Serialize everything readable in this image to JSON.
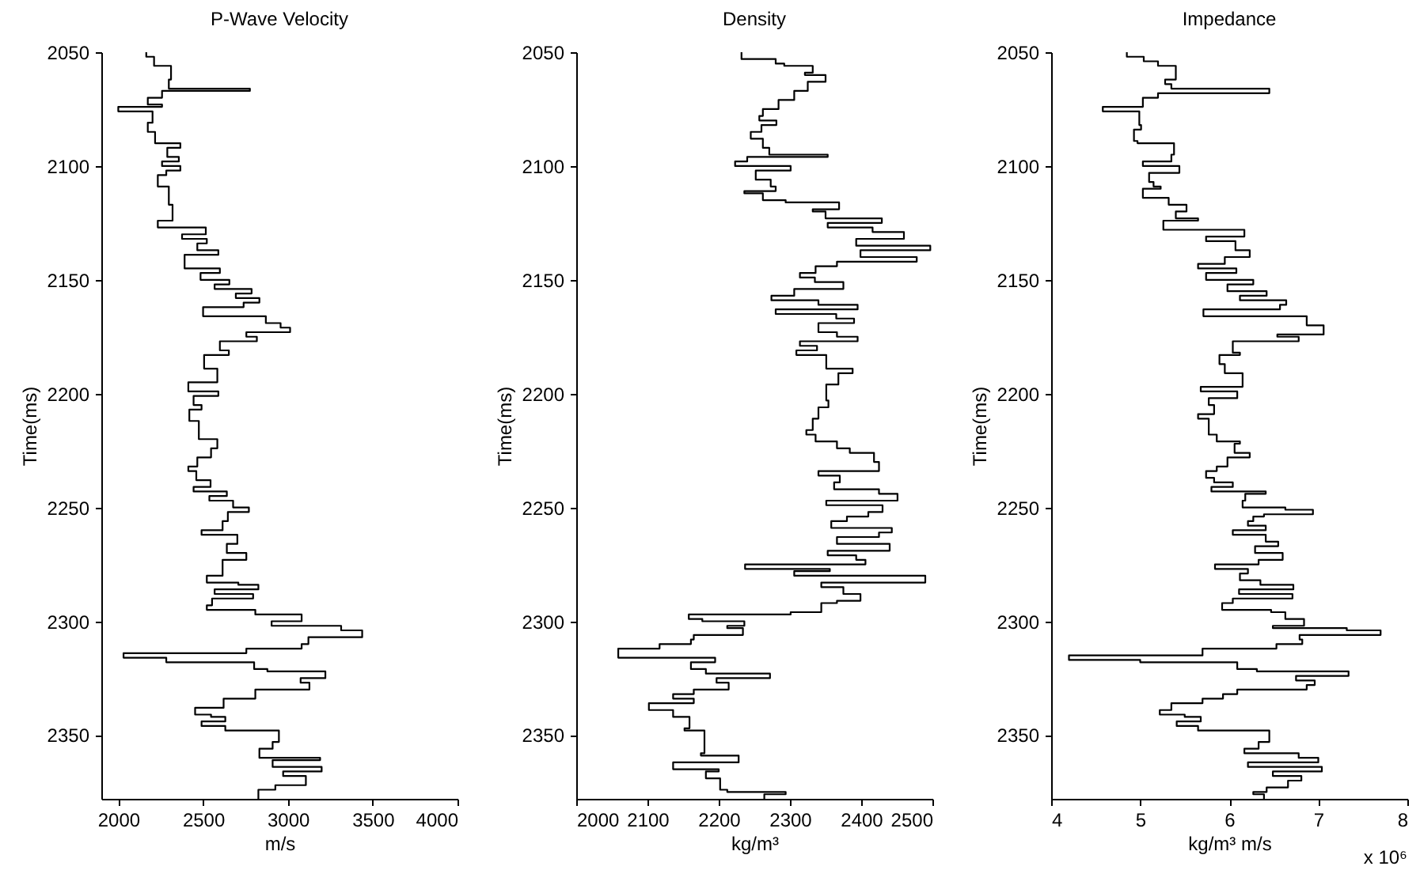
{
  "chart_data": [
    {
      "type": "step",
      "title": "P-Wave Velocity",
      "xlabel": "m/s",
      "ylabel": "Time(ms)",
      "color": "#000000",
      "grid": false,
      "xlim": [
        1900,
        4000
      ],
      "xticks": [
        2000,
        2500,
        3000,
        3500,
        4000
      ],
      "ylim": [
        2378,
        2050
      ],
      "yticks": [
        2050,
        2100,
        2150,
        2200,
        2250,
        2300,
        2350
      ],
      "x": [
        2165,
        2211,
        2311,
        2298,
        2776,
        2258,
        2174,
        2258,
        2000,
        2202,
        2174,
        2217,
        2366,
        2289,
        2357,
        2258,
        2366,
        2283,
        2233,
        2298,
        2320,
        2233,
        2516,
        2376,
        2522,
        2466,
        2590,
        2391,
        2599,
        2485,
        2655,
        2568,
        2786,
        2693,
        2832,
        2739,
        2500,
        2870,
        2957,
        3013,
        2755,
        2817,
        2599,
        2652,
        2506,
        2584,
        2413,
        2590,
        2444,
        2491,
        2419,
        2475,
        2584,
        2547,
        2466,
        2413,
        2460,
        2544,
        2444,
        2640,
        2537,
        2677,
        2770,
        2646,
        2615,
        2491,
        2702,
        2640,
        2755,
        2615,
        2522,
        2708,
        2826,
        2568,
        2795,
        2553,
        2522,
        2808,
        3081,
        2904,
        3314,
        3438,
        3121,
        3081,
        2755,
        2031,
        2283,
        2801,
        2879,
        3221,
        3075,
        3127,
        2808,
        2621,
        2453,
        2547,
        2631,
        2491,
        2631,
        2947,
        2910,
        2832,
        3190,
        2910,
        3199,
        2972,
        3106,
        2926,
        2826,
        2826
      ],
      "values": [
        2050,
        2052,
        2056,
        2062,
        2066,
        2067,
        2070,
        2073,
        2074,
        2076,
        2081,
        2085,
        2090,
        2092,
        2096,
        2098,
        2100,
        2102,
        2104,
        2109,
        2117,
        2124,
        2127,
        2130,
        2132,
        2134,
        2137,
        2139,
        2145,
        2147,
        2150,
        2152,
        2154,
        2156,
        2158,
        2160,
        2162,
        2166,
        2169,
        2171,
        2173,
        2175,
        2177,
        2181,
        2183,
        2189,
        2195,
        2199,
        2201,
        2205,
        2207,
        2212,
        2220,
        2224,
        2228,
        2232,
        2234,
        2238,
        2241,
        2243,
        2245,
        2247,
        2250,
        2252,
        2256,
        2260,
        2262,
        2266,
        2270,
        2273,
        2280,
        2283,
        2284,
        2286,
        2288,
        2290,
        2293,
        2295,
        2297,
        2300,
        2302,
        2304,
        2307,
        2310,
        2312,
        2314,
        2316,
        2318,
        2321,
        2322,
        2325,
        2327,
        2330,
        2334,
        2338,
        2341,
        2342,
        2344,
        2346,
        2348,
        2353,
        2356,
        2360,
        2361,
        2364,
        2366,
        2368,
        2372,
        2374,
        2378
      ]
    },
    {
      "type": "step",
      "title": "Density",
      "xlabel": "kg/m³",
      "ylabel": "Time(ms)",
      "color": "#000000",
      "grid": false,
      "xlim": [
        2000,
        2500
      ],
      "xticks": [
        2000,
        2100,
        2200,
        2300,
        2400,
        2500
      ],
      "ylim": [
        2378,
        2050
      ],
      "yticks": [
        2050,
        2100,
        2150,
        2200,
        2250,
        2300,
        2350
      ],
      "x": [
        2232,
        2280,
        2292,
        2332,
        2321,
        2350,
        2325,
        2306,
        2284,
        2262,
        2257,
        2281,
        2260,
        2245,
        2262,
        2271,
        2353,
        2240,
        2223,
        2301,
        2252,
        2273,
        2280,
        2236,
        2262,
        2294,
        2369,
        2332,
        2350,
        2429,
        2353,
        2416,
        2460,
        2393,
        2497,
        2399,
        2478,
        2366,
        2336,
        2314,
        2335,
        2375,
        2306,
        2274,
        2340,
        2395,
        2280,
        2365,
        2390,
        2340,
        2366,
        2395,
        2314,
        2338,
        2309,
        2351,
        2388,
        2368,
        2351,
        2354,
        2340,
        2332,
        2323,
        2336,
        2366,
        2384,
        2418,
        2425,
        2340,
        2370,
        2362,
        2425,
        2451,
        2351,
        2430,
        2410,
        2380,
        2358,
        2443,
        2425,
        2366,
        2440,
        2353,
        2393,
        2406,
        2237,
        2356,
        2306,
        2490,
        2344,
        2375,
        2399,
        2366,
        2344,
        2301,
        2158,
        2177,
        2236,
        2212,
        2234,
        2165,
        2161,
        2117,
        2059,
        2195,
        2161,
        2182,
        2272,
        2197,
        2214,
        2165,
        2136,
        2165,
        2102,
        2136,
        2159,
        2152,
        2180,
        2175,
        2228,
        2136,
        2200,
        2182,
        2202,
        2212,
        2294,
        2264,
        2264
      ],
      "values": [
        2050,
        2053,
        2055,
        2056,
        2059,
        2060,
        2063,
        2067,
        2071,
        2075,
        2078,
        2080,
        2082,
        2085,
        2088,
        2092,
        2095,
        2096,
        2098,
        2100,
        2102,
        2106,
        2109,
        2111,
        2112,
        2115,
        2116,
        2119,
        2120,
        2123,
        2125,
        2127,
        2129,
        2132,
        2135,
        2137,
        2140,
        2142,
        2144,
        2147,
        2149,
        2151,
        2154,
        2157,
        2159,
        2161,
        2163,
        2165,
        2167,
        2169,
        2173,
        2175,
        2177,
        2179,
        2181,
        2183,
        2189,
        2191,
        2196,
        2203,
        2206,
        2211,
        2216,
        2218,
        2221,
        2224,
        2226,
        2230,
        2234,
        2236,
        2239,
        2242,
        2244,
        2247,
        2249,
        2252,
        2254,
        2256,
        2259,
        2261,
        2263,
        2266,
        2269,
        2271,
        2273,
        2275,
        2277,
        2278,
        2280,
        2283,
        2285,
        2288,
        2291,
        2292,
        2296,
        2297,
        2299,
        2300,
        2302,
        2303,
        2306,
        2308,
        2310,
        2312,
        2316,
        2318,
        2321,
        2323,
        2325,
        2327,
        2330,
        2332,
        2334,
        2336,
        2339,
        2342,
        2347,
        2348,
        2358,
        2359,
        2362,
        2365,
        2366,
        2369,
        2374,
        2375,
        2376,
        2378
      ]
    },
    {
      "type": "step",
      "title": "Impedance",
      "xlabel": "kg/m³ m/s",
      "ylabel": "Time(ms)",
      "color": "#000000",
      "grid": false,
      "annotations": [
        "x 10⁶"
      ],
      "xlim": [
        4,
        8
      ],
      "xticks": [
        4,
        5,
        6,
        7,
        8
      ],
      "ylim": [
        2378,
        2050
      ],
      "yticks": [
        2050,
        2100,
        2150,
        2200,
        2250,
        2300,
        2350
      ],
      "x": [
        4.85,
        5.04,
        5.2,
        5.4,
        5.28,
        5.35,
        6.45,
        5.2,
        5.03,
        4.58,
        4.99,
        5.01,
        4.93,
        4.97,
        5.38,
        5.35,
        5.03,
        5.44,
        5.1,
        5.15,
        5.23,
        5.03,
        5.32,
        5.52,
        5.4,
        5.65,
        5.26,
        6.17,
        5.74,
        6.07,
        6.23,
        5.95,
        5.65,
        6.08,
        5.74,
        6.27,
        5.98,
        6.42,
        6.12,
        6.64,
        6.57,
        5.71,
        6.87,
        7.06,
        6.54,
        6.78,
        6.04,
        6.12,
        5.89,
        5.95,
        6.15,
        5.68,
        6.09,
        5.77,
        5.83,
        5.65,
        5.77,
        5.86,
        6.12,
        6.06,
        6.23,
        5.98,
        5.86,
        5.74,
        5.83,
        6.04,
        5.8,
        6.41,
        6.18,
        6.15,
        6.63,
        6.94,
        6.39,
        6.27,
        6.21,
        6.41,
        6.04,
        6.41,
        6.55,
        6.29,
        6.6,
        6.33,
        5.84,
        6.21,
        6.12,
        6.35,
        6.72,
        6.11,
        6.71,
        6.04,
        5.92,
        6.47,
        6.63,
        6.84,
        6.49,
        7.32,
        7.7,
        6.79,
        6.82,
        6.53,
        5.7,
        4.2,
        5.0,
        6.09,
        6.31,
        7.34,
        6.75,
        6.96,
        6.87,
        6.09,
        5.93,
        5.7,
        5.35,
        5.22,
        5.5,
        5.68,
        5.41,
        5.65,
        6.45,
        6.33,
        6.17,
        6.78,
        7.0,
        6.21,
        7.04,
        6.49,
        6.81,
        6.66,
        6.42,
        6.27,
        6.39,
        6.39
      ],
      "values": [
        2050,
        2052,
        2054,
        2056,
        2062,
        2064,
        2066,
        2068,
        2070,
        2074,
        2076,
        2082,
        2084,
        2089,
        2090,
        2095,
        2098,
        2100,
        2103,
        2107,
        2109,
        2110,
        2114,
        2117,
        2120,
        2123,
        2124,
        2128,
        2131,
        2133,
        2137,
        2140,
        2143,
        2145,
        2147,
        2150,
        2152,
        2155,
        2157,
        2159,
        2161,
        2163,
        2166,
        2170,
        2174,
        2175,
        2177,
        2182,
        2183,
        2187,
        2191,
        2197,
        2199,
        2202,
        2205,
        2209,
        2211,
        2218,
        2221,
        2222,
        2226,
        2228,
        2232,
        2234,
        2237,
        2239,
        2241,
        2243,
        2244,
        2247,
        2250,
        2251,
        2253,
        2254,
        2256,
        2258,
        2260,
        2262,
        2265,
        2267,
        2270,
        2273,
        2275,
        2277,
        2279,
        2282,
        2284,
        2286,
        2288,
        2290,
        2292,
        2295,
        2296,
        2299,
        2302,
        2303,
        2304,
        2306,
        2308,
        2310,
        2312,
        2315,
        2317,
        2318,
        2321,
        2322,
        2324,
        2326,
        2328,
        2330,
        2332,
        2334,
        2336,
        2339,
        2341,
        2342,
        2344,
        2346,
        2348,
        2353,
        2356,
        2358,
        2360,
        2362,
        2364,
        2366,
        2368,
        2370,
        2373,
        2375,
        2376,
        2378
      ]
    }
  ]
}
